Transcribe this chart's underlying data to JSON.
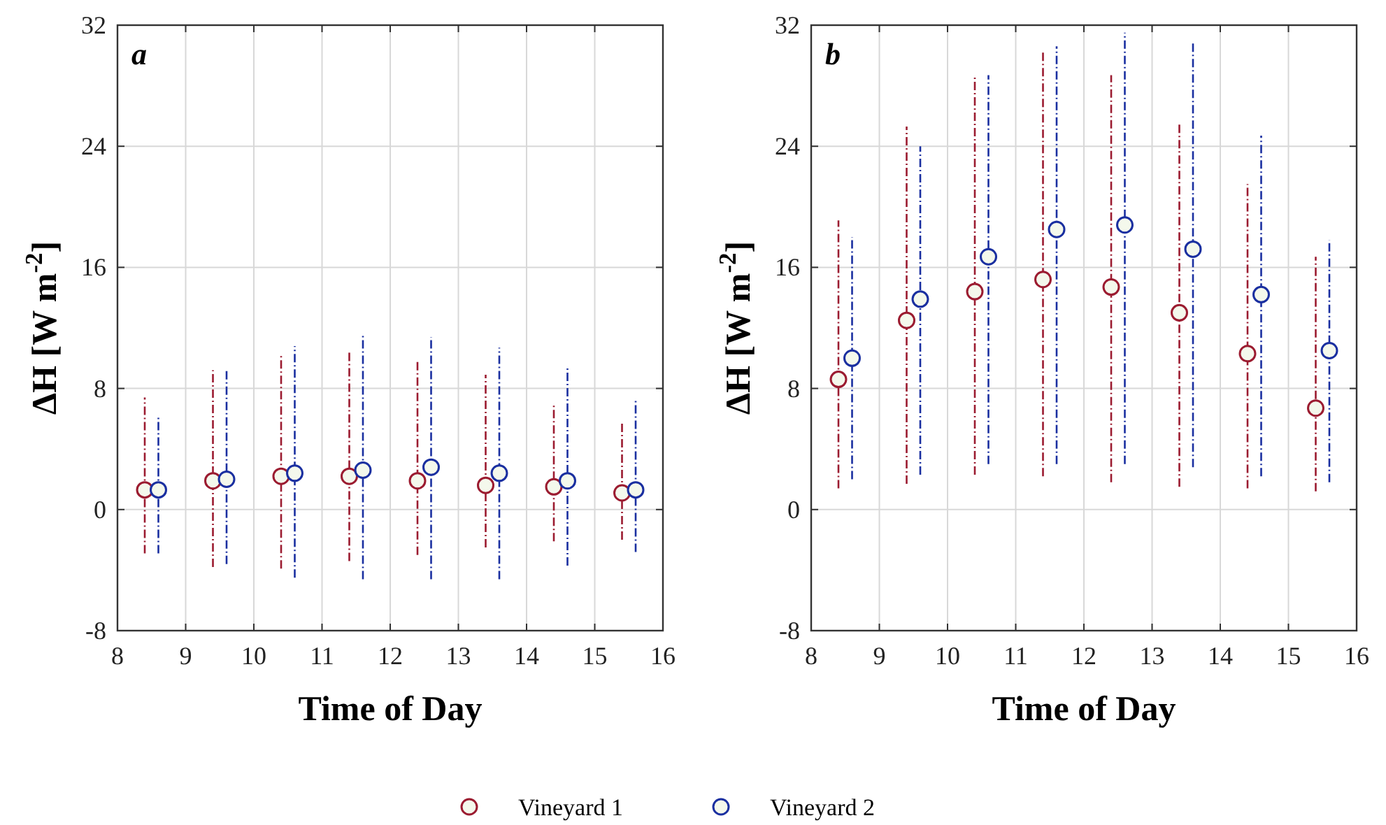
{
  "chart_data": [
    {
      "type": "scatter",
      "title": "a",
      "xlabel": "Time of Day",
      "ylabel": "ΔH  [W m$^{-2}$]",
      "xlim": [
        8,
        16
      ],
      "xticks": [
        8,
        9,
        10,
        11,
        12,
        13,
        14,
        15,
        16
      ],
      "ylim": [
        -8,
        32
      ],
      "yticks": [
        -8,
        0,
        8,
        16,
        24,
        32
      ],
      "grid": true,
      "marker": "circle",
      "line_style": "dashed",
      "legend": "bottom",
      "series": [
        {
          "name": "Vineyard 1",
          "color": "#9b1b30",
          "x": [
            8.4,
            9.4,
            10.4,
            11.4,
            12.4,
            13.4,
            14.4,
            15.4
          ],
          "values": [
            1.3,
            1.9,
            2.2,
            2.2,
            1.9,
            1.6,
            1.5,
            1.1
          ],
          "errors": [
            [
              -2.9,
              7.4
            ],
            [
              -3.8,
              9.2
            ],
            [
              -3.9,
              10.2
            ],
            [
              -3.4,
              10.4
            ],
            [
              -3.0,
              9.8
            ],
            [
              -2.5,
              8.9
            ],
            [
              -2.1,
              6.9
            ],
            [
              -2.0,
              5.8
            ]
          ]
        },
        {
          "name": "Vineyard 2",
          "color": "#1a2fa0",
          "x": [
            8.6,
            9.6,
            10.6,
            11.6,
            12.6,
            13.6,
            14.6,
            15.6
          ],
          "values": [
            1.3,
            2.0,
            2.4,
            2.6,
            2.8,
            2.4,
            1.9,
            1.3
          ],
          "errors": [
            [
              -2.9,
              6.1
            ],
            [
              -3.6,
              9.2
            ],
            [
              -4.5,
              10.8
            ],
            [
              -4.6,
              11.6
            ],
            [
              -4.6,
              11.4
            ],
            [
              -4.6,
              10.7
            ],
            [
              -3.7,
              9.5
            ],
            [
              -2.8,
              7.3
            ]
          ]
        }
      ]
    },
    {
      "type": "scatter",
      "title": "b",
      "xlabel": "Time of Day",
      "ylabel": "ΔH  [W m$^{-2}$]",
      "xlim": [
        8,
        16
      ],
      "xticks": [
        8,
        9,
        10,
        11,
        12,
        13,
        14,
        15,
        16
      ],
      "ylim": [
        -8,
        32
      ],
      "yticks": [
        -8,
        0,
        8,
        16,
        24,
        32
      ],
      "grid": true,
      "marker": "circle",
      "line_style": "dashed",
      "series": [
        {
          "color": "#9b1b30",
          "x": [
            8.4,
            9.4,
            10.4,
            11.4,
            12.4,
            13.4,
            14.4,
            15.4
          ],
          "values": [
            8.6,
            12.5,
            14.4,
            15.2,
            14.7,
            13.0,
            10.3,
            6.7
          ],
          "errors": [
            [
              1.4,
              19.1
            ],
            [
              1.7,
              25.3
            ],
            [
              2.3,
              28.7
            ],
            [
              2.2,
              30.2
            ],
            [
              1.8,
              28.7
            ],
            [
              1.5,
              25.6
            ],
            [
              1.4,
              21.5
            ],
            [
              1.2,
              16.7
            ]
          ]
        },
        {
          "color": "#1a2fa0",
          "x": [
            8.6,
            9.6,
            10.6,
            11.6,
            12.6,
            13.6,
            14.6,
            15.6
          ],
          "values": [
            10.0,
            13.9,
            16.7,
            18.5,
            18.8,
            17.2,
            14.2,
            10.5
          ],
          "errors": [
            [
              2.0,
              18.0
            ],
            [
              2.3,
              24.0
            ],
            [
              3.0,
              28.7
            ],
            [
              3.0,
              30.6
            ],
            [
              3.0,
              31.5
            ],
            [
              2.8,
              30.8
            ],
            [
              2.2,
              24.7
            ],
            [
              1.8,
              17.8
            ]
          ]
        }
      ]
    }
  ]
}
